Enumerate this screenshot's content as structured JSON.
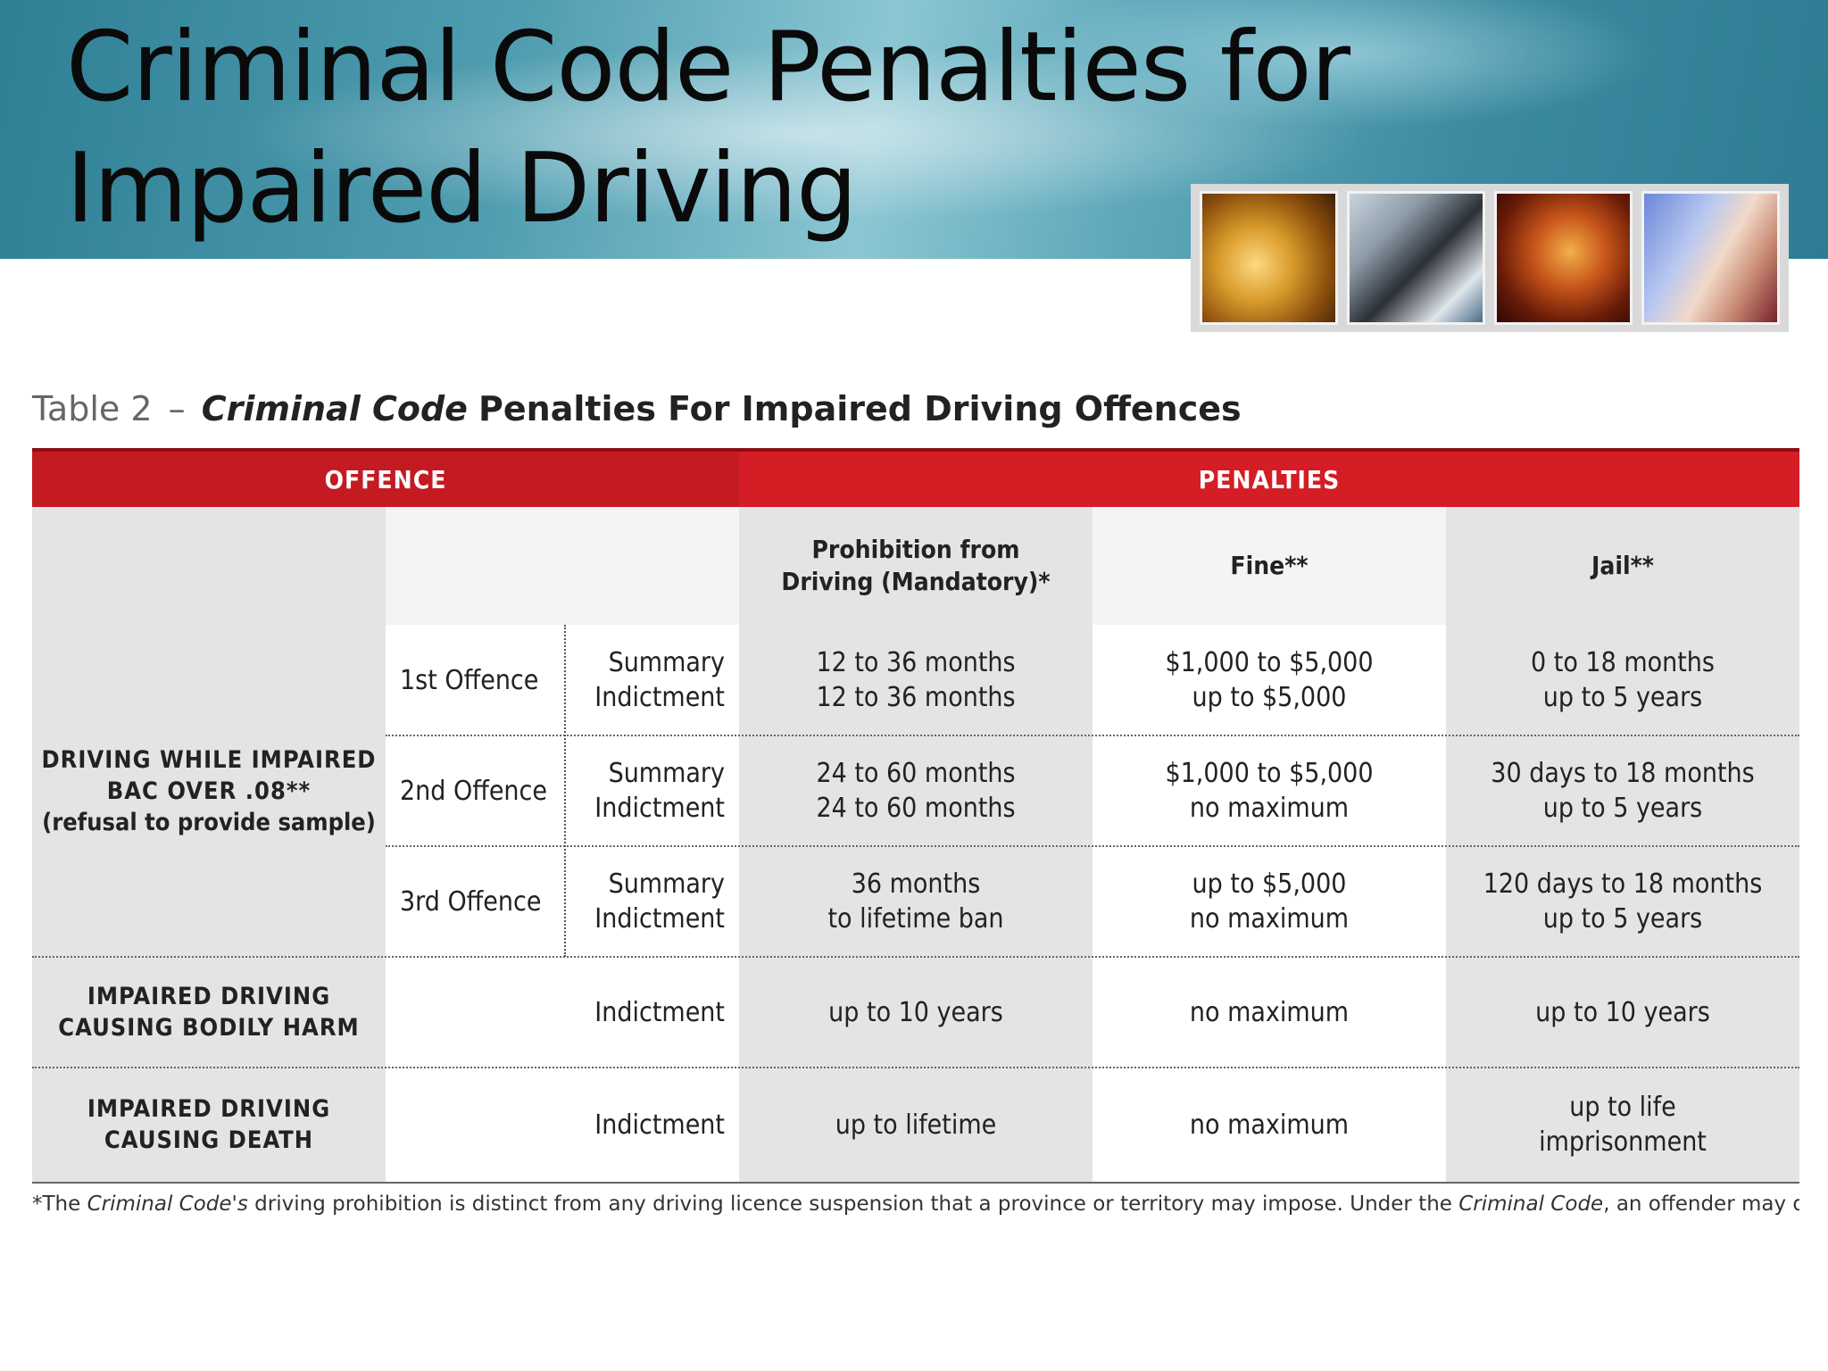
{
  "slide": {
    "title": "Criminal Code Penalties for Impaired Driving"
  },
  "photos": [
    {
      "icon": "scales-of-justice-photo"
    },
    {
      "icon": "business-people-photo"
    },
    {
      "icon": "gavel-photo"
    },
    {
      "icon": "handshake-photo"
    }
  ],
  "table": {
    "caption_prefix": "Table 2",
    "caption_dash": "–",
    "caption_italic": "Criminal Code",
    "caption_rest": "Penalties For Impaired Driving Offences",
    "header_offence": "OFFENCE",
    "header_penalties": "PENALTIES",
    "col_prohibition": "Prohibition from Driving (Mandatory)*",
    "col_fine": "Fine**",
    "col_jail": "Jail**",
    "dwi": {
      "name_line1": "DRIVING WHILE IMPAIRED",
      "name_line2": "BAC OVER .08**",
      "name_line3": "(refusal to provide sample)",
      "rows": [
        {
          "offence": "1st Offence",
          "proc": [
            "Summary",
            "Indictment"
          ],
          "prohibition": [
            "12 to 36 months",
            "12 to 36 months"
          ],
          "fine": [
            "$1,000 to $5,000",
            "up to $5,000"
          ],
          "jail": [
            "0 to 18 months",
            "up to 5 years"
          ]
        },
        {
          "offence": "2nd Offence",
          "proc": [
            "Summary",
            "Indictment"
          ],
          "prohibition": [
            "24 to 60 months",
            "24 to 60 months"
          ],
          "fine": [
            "$1,000 to $5,000",
            "no maximum"
          ],
          "jail": [
            "30 days to 18 months",
            "up to 5 years"
          ]
        },
        {
          "offence": "3rd Offence",
          "proc": [
            "Summary",
            "Indictment"
          ],
          "prohibition": [
            "36 months",
            "to lifetime ban"
          ],
          "fine": [
            "up to $5,000",
            "no maximum"
          ],
          "jail": [
            "120 days to 18 months",
            "up to 5 years"
          ]
        }
      ]
    },
    "bodily_harm": {
      "name_line1": "IMPAIRED DRIVING",
      "name_line2": "CAUSING BODILY HARM",
      "proc": "Indictment",
      "prohibition": "up to 10 years",
      "fine": "no maximum",
      "jail": "up to 10 years"
    },
    "death": {
      "name_line1": "IMPAIRED DRIVING",
      "name_line2": "CAUSING DEATH",
      "proc": "Indictment",
      "prohibition": "up to lifetime",
      "fine": "no maximum",
      "jail_line1": "up to life",
      "jail_line2": "imprisonment"
    },
    "footnote_start": "*The",
    "footnote_italic1": "Criminal Code's",
    "footnote_mid": "driving prohibition is distinct from any driving licence suspension that a province or territory may impose. Under the",
    "footnote_italic2": "Criminal Code",
    "footnote_end": ", an offender may drive"
  }
}
